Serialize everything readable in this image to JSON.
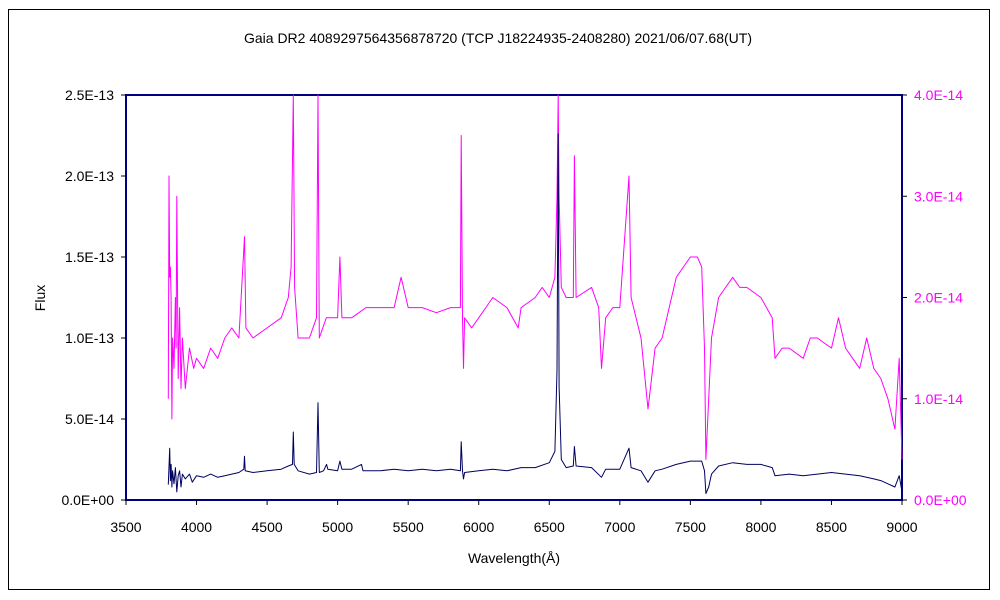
{
  "chart_data": {
    "type": "line",
    "title": "Gaia DR2 4089297564356878720 (TCP J18224935-2408280)    2021/06/07.68(UT)",
    "xlabel": "Wavelength(Å)",
    "ylabel": "Flux",
    "xlim": [
      3500,
      9000
    ],
    "ylim_left": [
      0,
      2.5e-13
    ],
    "ylim_right": [
      0,
      4e-14
    ],
    "x_ticks": [
      "3500",
      "4000",
      "4500",
      "5000",
      "5500",
      "6000",
      "6500",
      "7000",
      "7500",
      "8000",
      "8500",
      "9000"
    ],
    "y_left_ticks": [
      "0.0E+00",
      "5.0E-14",
      "1.0E-13",
      "1.5E-13",
      "2.0E-13",
      "2.5E-13"
    ],
    "y_right_ticks": [
      "0.0E+00",
      "1.0E-14",
      "2.0E-14",
      "3.0E-14",
      "4.0E-14"
    ],
    "grid": false,
    "colors": {
      "left_axis": "#000000",
      "right_axis": "#ff00ff",
      "plot_border": "#000080"
    },
    "series": [
      {
        "axis": "left",
        "color": "#000060",
        "points": [
          [
            3800,
            9.5e-15
          ],
          [
            3810,
            3.2e-14
          ],
          [
            3815,
            1.2e-14
          ],
          [
            3820,
            2.2e-14
          ],
          [
            3825,
            8e-15
          ],
          [
            3830,
            1.8e-14
          ],
          [
            3840,
            1e-14
          ],
          [
            3850,
            2e-14
          ],
          [
            3860,
            5e-15
          ],
          [
            3870,
            1.5e-14
          ],
          [
            3880,
            1.8e-14
          ],
          [
            3890,
            8e-15
          ],
          [
            3900,
            1.6e-14
          ],
          [
            3920,
            1.3e-14
          ],
          [
            3950,
            1.6e-14
          ],
          [
            3970,
            1.1e-14
          ],
          [
            4000,
            1.5e-14
          ],
          [
            4050,
            1.4e-14
          ],
          [
            4100,
            1.6e-14
          ],
          [
            4150,
            1.4e-14
          ],
          [
            4200,
            1.5e-14
          ],
          [
            4250,
            1.6e-14
          ],
          [
            4300,
            1.7e-14
          ],
          [
            4335,
            1.9e-14
          ],
          [
            4340,
            2.7e-14
          ],
          [
            4345,
            1.8e-14
          ],
          [
            4400,
            1.7e-14
          ],
          [
            4500,
            1.8e-14
          ],
          [
            4600,
            1.9e-14
          ],
          [
            4650,
            2.1e-14
          ],
          [
            4680,
            2.2e-14
          ],
          [
            4686,
            4.2e-14
          ],
          [
            4692,
            2.2e-14
          ],
          [
            4720,
            1.8e-14
          ],
          [
            4800,
            1.6e-14
          ],
          [
            4850,
            1.7e-14
          ],
          [
            4861,
            6e-14
          ],
          [
            4870,
            1.7e-14
          ],
          [
            4900,
            1.8e-14
          ],
          [
            4922,
            2.2e-14
          ],
          [
            4930,
            1.9e-14
          ],
          [
            5000,
            1.8e-14
          ],
          [
            5016,
            2.4e-14
          ],
          [
            5030,
            1.9e-14
          ],
          [
            5100,
            1.9e-14
          ],
          [
            5169,
            2.2e-14
          ],
          [
            5180,
            1.8e-14
          ],
          [
            5300,
            1.8e-14
          ],
          [
            5400,
            1.9e-14
          ],
          [
            5500,
            1.8e-14
          ],
          [
            5600,
            1.9e-14
          ],
          [
            5700,
            1.8e-14
          ],
          [
            5800,
            1.9e-14
          ],
          [
            5870,
            1.8e-14
          ],
          [
            5876,
            3.6e-14
          ],
          [
            5885,
            1.8e-14
          ],
          [
            5892,
            1.3e-14
          ],
          [
            5900,
            1.7e-14
          ],
          [
            6000,
            1.8e-14
          ],
          [
            6100,
            1.9e-14
          ],
          [
            6200,
            1.8e-14
          ],
          [
            6300,
            2e-14
          ],
          [
            6400,
            2e-14
          ],
          [
            6500,
            2.3e-14
          ],
          [
            6540,
            3e-14
          ],
          [
            6555,
            8e-14
          ],
          [
            6563,
            2.26e-13
          ],
          [
            6570,
            7e-14
          ],
          [
            6585,
            2.5e-14
          ],
          [
            6620,
            2e-14
          ],
          [
            6670,
            2.1e-14
          ],
          [
            6678,
            3.3e-14
          ],
          [
            6690,
            2.1e-14
          ],
          [
            6800,
            2e-14
          ],
          [
            6870,
            1.4e-14
          ],
          [
            6900,
            1.9e-14
          ],
          [
            7000,
            1.9e-14
          ],
          [
            7065,
            3.2e-14
          ],
          [
            7080,
            2e-14
          ],
          [
            7150,
            1.8e-14
          ],
          [
            7200,
            1.1e-14
          ],
          [
            7250,
            1.8e-14
          ],
          [
            7300,
            1.9e-14
          ],
          [
            7400,
            2.2e-14
          ],
          [
            7500,
            2.4e-14
          ],
          [
            7580,
            2.4e-14
          ],
          [
            7600,
            1.8e-14
          ],
          [
            7610,
            4e-15
          ],
          [
            7630,
            8e-15
          ],
          [
            7650,
            1.6e-14
          ],
          [
            7700,
            2.1e-14
          ],
          [
            7800,
            2.3e-14
          ],
          [
            7900,
            2.2e-14
          ],
          [
            8000,
            2.2e-14
          ],
          [
            8080,
            2e-14
          ],
          [
            8100,
            1.5e-14
          ],
          [
            8200,
            1.6e-14
          ],
          [
            8300,
            1.5e-14
          ],
          [
            8400,
            1.6e-14
          ],
          [
            8500,
            1.7e-14
          ],
          [
            8600,
            1.6e-14
          ],
          [
            8700,
            1.5e-14
          ],
          [
            8800,
            1.3e-14
          ],
          [
            8850,
            1.2e-14
          ],
          [
            8900,
            1e-14
          ],
          [
            8950,
            8e-15
          ],
          [
            8980,
            1.5e-14
          ],
          [
            9000,
            5e-15
          ]
        ]
      },
      {
        "axis": "right",
        "color": "#ff00ff",
        "points": [
          [
            3800,
            1e-14
          ],
          [
            3805,
            3.2e-14
          ],
          [
            3810,
            2.2e-14
          ],
          [
            3815,
            2.3e-14
          ],
          [
            3820,
            2e-14
          ],
          [
            3825,
            8e-15
          ],
          [
            3830,
            1.6e-14
          ],
          [
            3840,
            1.3e-14
          ],
          [
            3850,
            2e-14
          ],
          [
            3855,
            1.5e-14
          ],
          [
            3860,
            3e-14
          ],
          [
            3870,
            1.2e-14
          ],
          [
            3880,
            1.9e-14
          ],
          [
            3890,
            1.1e-14
          ],
          [
            3900,
            1.6e-14
          ],
          [
            3920,
            1.1e-14
          ],
          [
            3950,
            1.5e-14
          ],
          [
            3980,
            1.3e-14
          ],
          [
            4000,
            1.4e-14
          ],
          [
            4050,
            1.3e-14
          ],
          [
            4100,
            1.5e-14
          ],
          [
            4150,
            1.4e-14
          ],
          [
            4200,
            1.6e-14
          ],
          [
            4250,
            1.7e-14
          ],
          [
            4300,
            1.6e-14
          ],
          [
            4340,
            2.6e-14
          ],
          [
            4350,
            1.7e-14
          ],
          [
            4400,
            1.6e-14
          ],
          [
            4500,
            1.7e-14
          ],
          [
            4600,
            1.8e-14
          ],
          [
            4650,
            2e-14
          ],
          [
            4670,
            2.3e-14
          ],
          [
            4686,
            4e-14
          ],
          [
            4695,
            2.1e-14
          ],
          [
            4720,
            1.6e-14
          ],
          [
            4800,
            1.6e-14
          ],
          [
            4850,
            1.8e-14
          ],
          [
            4861,
            4e-14
          ],
          [
            4870,
            1.6e-14
          ],
          [
            4920,
            1.8e-14
          ],
          [
            5000,
            1.8e-14
          ],
          [
            5016,
            2.4e-14
          ],
          [
            5030,
            1.8e-14
          ],
          [
            5100,
            1.8e-14
          ],
          [
            5200,
            1.9e-14
          ],
          [
            5300,
            1.9e-14
          ],
          [
            5400,
            1.9e-14
          ],
          [
            5450,
            2.2e-14
          ],
          [
            5500,
            1.9e-14
          ],
          [
            5600,
            1.9e-14
          ],
          [
            5700,
            1.85e-14
          ],
          [
            5800,
            1.9e-14
          ],
          [
            5870,
            1.9e-14
          ],
          [
            5876,
            3.6e-14
          ],
          [
            5885,
            1.8e-14
          ],
          [
            5892,
            1.3e-14
          ],
          [
            5900,
            1.8e-14
          ],
          [
            5950,
            1.7e-14
          ],
          [
            6000,
            1.8e-14
          ],
          [
            6050,
            1.9e-14
          ],
          [
            6100,
            2e-14
          ],
          [
            6200,
            1.9e-14
          ],
          [
            6280,
            1.7e-14
          ],
          [
            6300,
            1.9e-14
          ],
          [
            6400,
            2e-14
          ],
          [
            6450,
            2.1e-14
          ],
          [
            6500,
            2e-14
          ],
          [
            6540,
            2.2e-14
          ],
          [
            6555,
            3e-14
          ],
          [
            6563,
            4e-14
          ],
          [
            6570,
            3e-14
          ],
          [
            6585,
            2.1e-14
          ],
          [
            6620,
            2e-14
          ],
          [
            6670,
            2e-14
          ],
          [
            6678,
            3.4e-14
          ],
          [
            6690,
            2e-14
          ],
          [
            6800,
            2.1e-14
          ],
          [
            6850,
            1.9e-14
          ],
          [
            6870,
            1.3e-14
          ],
          [
            6900,
            1.8e-14
          ],
          [
            6950,
            1.9e-14
          ],
          [
            7000,
            1.9e-14
          ],
          [
            7065,
            3.2e-14
          ],
          [
            7080,
            2e-14
          ],
          [
            7150,
            1.6e-14
          ],
          [
            7200,
            9e-15
          ],
          [
            7250,
            1.5e-14
          ],
          [
            7300,
            1.6e-14
          ],
          [
            7350,
            1.9e-14
          ],
          [
            7400,
            2.2e-14
          ],
          [
            7450,
            2.3e-14
          ],
          [
            7500,
            2.4e-14
          ],
          [
            7550,
            2.4e-14
          ],
          [
            7580,
            2.3e-14
          ],
          [
            7600,
            1.5e-14
          ],
          [
            7610,
            4e-15
          ],
          [
            7630,
            1e-14
          ],
          [
            7650,
            1.6e-14
          ],
          [
            7700,
            2e-14
          ],
          [
            7750,
            2.1e-14
          ],
          [
            7800,
            2.2e-14
          ],
          [
            7850,
            2.1e-14
          ],
          [
            7900,
            2.1e-14
          ],
          [
            8000,
            2e-14
          ],
          [
            8080,
            1.8e-14
          ],
          [
            8100,
            1.4e-14
          ],
          [
            8150,
            1.5e-14
          ],
          [
            8200,
            1.5e-14
          ],
          [
            8300,
            1.4e-14
          ],
          [
            8350,
            1.6e-14
          ],
          [
            8400,
            1.6e-14
          ],
          [
            8500,
            1.5e-14
          ],
          [
            8550,
            1.8e-14
          ],
          [
            8600,
            1.5e-14
          ],
          [
            8650,
            1.4e-14
          ],
          [
            8700,
            1.3e-14
          ],
          [
            8750,
            1.6e-14
          ],
          [
            8800,
            1.3e-14
          ],
          [
            8850,
            1.2e-14
          ],
          [
            8900,
            1e-14
          ],
          [
            8950,
            7e-15
          ],
          [
            8980,
            1.4e-14
          ],
          [
            9000,
            4e-15
          ]
        ]
      }
    ]
  }
}
